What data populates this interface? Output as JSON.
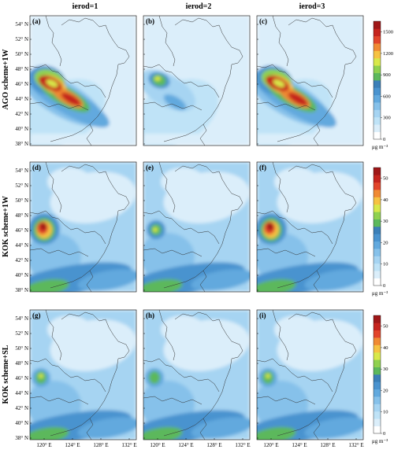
{
  "column_titles": [
    "ierod=1",
    "ierod=2",
    "ierod=3"
  ],
  "row_labels": [
    "AGO scheme+1W",
    "KOK scheme+1W",
    "KOK scheme+SL"
  ],
  "panel_labels": [
    [
      "(a)",
      "(b)",
      "(c)"
    ],
    [
      "(d)",
      "(e)",
      "(f)"
    ],
    [
      "(g)",
      "(h)",
      "(i)"
    ]
  ],
  "lat_ticks": [
    "54° N",
    "52° N",
    "50° N",
    "48° N",
    "46° N",
    "44° N",
    "42° N",
    "40° N",
    "38° N"
  ],
  "lon_ticks": [
    "120° E",
    "124° E",
    "128° E",
    "132° E"
  ],
  "colorbars": [
    {
      "ticks": [
        "0",
        "300",
        "600",
        "900",
        "1200",
        "1500"
      ],
      "max": 1650,
      "unit": "μg m⁻³"
    },
    {
      "ticks": [
        "0",
        "10",
        "20",
        "30",
        "40",
        "50"
      ],
      "max": 55,
      "unit": "μg m⁻³"
    },
    {
      "ticks": [
        "0",
        "10",
        "20",
        "30",
        "40",
        "50"
      ],
      "max": 55,
      "unit": "μg m⁻³"
    }
  ],
  "colors": {
    "scale": [
      "#ffffff",
      "#dbeefa",
      "#bfe3f7",
      "#a6d4f2",
      "#86c1ea",
      "#62a9de",
      "#4a93cf",
      "#3b7fb8",
      "#5cb85c",
      "#8fd14f",
      "#d8e84a",
      "#f6c242",
      "#f08a33",
      "#e2452b",
      "#c5241e",
      "#9f1718"
    ]
  }
}
